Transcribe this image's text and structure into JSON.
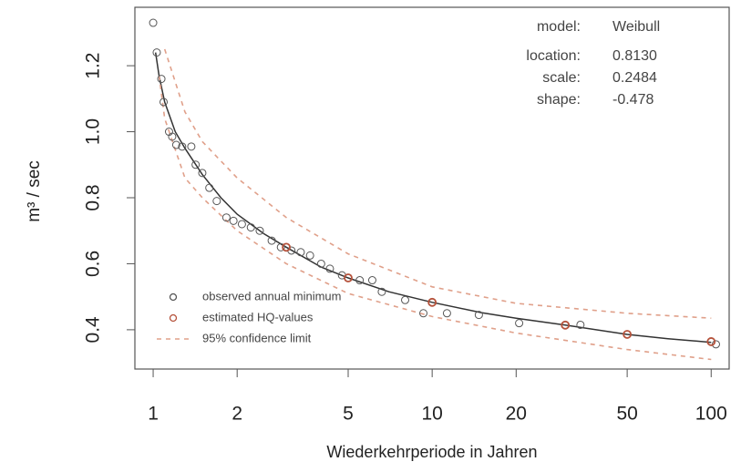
{
  "chart_data": {
    "type": "scatter",
    "x_label": "Wiederkehrperiode in Jahren",
    "y_label": "m³ / sec",
    "log_x": true,
    "xlim": [
      0.86,
      116
    ],
    "ylim": [
      0.281,
      1.377
    ],
    "xticks": [
      1,
      2,
      5,
      10,
      20,
      50,
      100
    ],
    "yticks": [
      0.4,
      0.6,
      0.8,
      {
        "value": 1,
        "label": "1.0"
      },
      1.2
    ],
    "annotations": {
      "labels": [
        "model:",
        "location:",
        "scale:",
        "shape:"
      ],
      "values": [
        "Weibull",
        "0.8130",
        "0.2484",
        "-0.478"
      ]
    },
    "series": [
      {
        "mode": "line",
        "color": "#333333",
        "x": [
          1.02,
          1.05,
          1.1,
          1.2,
          1.3,
          1.5,
          1.75,
          2,
          2.5,
          3,
          4,
          5,
          7,
          10,
          15,
          20,
          30,
          50,
          70,
          100
        ],
        "values": [
          1.24,
          1.17,
          1.09,
          1.0,
          0.95,
          0.87,
          0.8,
          0.75,
          0.69,
          0.65,
          0.59,
          0.557,
          0.515,
          0.483,
          0.452,
          0.435,
          0.414,
          0.386,
          0.373,
          0.362
        ]
      },
      {
        "name": "95% confidence limit",
        "mode": "dashed",
        "color": "#e0a08a",
        "x": [
          1.1,
          1.3,
          1.5,
          2,
          3,
          5,
          10,
          20,
          50,
          100
        ],
        "values": [
          1.25,
          1.06,
          0.97,
          0.86,
          0.74,
          0.63,
          0.53,
          0.48,
          0.45,
          0.435
        ]
      },
      {
        "mode": "dashed",
        "color": "#e0a08a",
        "x": [
          1.05,
          1.1,
          1.3,
          1.5,
          2,
          3,
          5,
          10,
          20,
          50,
          100
        ],
        "values": [
          1.17,
          1.04,
          0.86,
          0.8,
          0.7,
          0.6,
          0.51,
          0.44,
          0.39,
          0.34,
          0.31
        ]
      },
      {
        "name": "observed annual minimum",
        "mode": "markers",
        "color": "#555555",
        "x": [
          1.0,
          1.03,
          1.07,
          1.09,
          1.14,
          1.17,
          1.21,
          1.27,
          1.37,
          1.42,
          1.5,
          1.59,
          1.69,
          1.83,
          1.94,
          2.08,
          2.24,
          2.41,
          2.66,
          2.87,
          3.13,
          3.38,
          3.65,
          4.0,
          4.3,
          4.75,
          5.5,
          6.1,
          6.6,
          8.0,
          9.3,
          11.3,
          14.7,
          20.5,
          34,
          104
        ],
        "values": [
          1.33,
          1.24,
          1.16,
          1.09,
          1.0,
          0.985,
          0.96,
          0.955,
          0.955,
          0.9,
          0.875,
          0.83,
          0.79,
          0.74,
          0.73,
          0.72,
          0.71,
          0.7,
          0.67,
          0.65,
          0.64,
          0.635,
          0.625,
          0.6,
          0.585,
          0.565,
          0.55,
          0.55,
          0.515,
          0.49,
          0.45,
          0.45,
          0.445,
          0.42,
          0.415,
          0.356
        ]
      },
      {
        "name": "estimated HQ-values",
        "mode": "markers",
        "color": "#b5523b",
        "x": [
          3,
          5,
          10,
          30,
          50,
          100
        ],
        "values": [
          0.65,
          0.557,
          0.483,
          0.414,
          0.386,
          0.364
        ]
      }
    ]
  }
}
